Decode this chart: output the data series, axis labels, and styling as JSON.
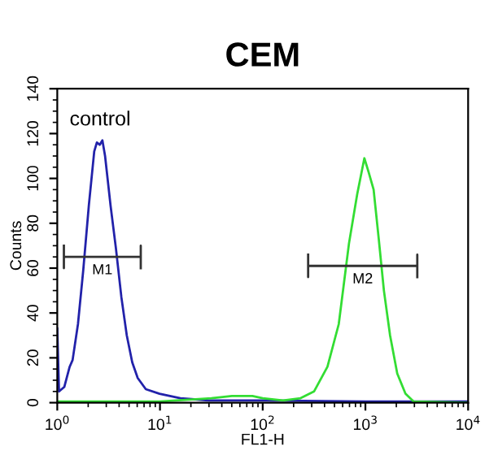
{
  "chart_data": {
    "type": "line",
    "title": "CEM",
    "xlabel": "FL1-H",
    "ylabel": "Counts",
    "log": "x",
    "xlim": [
      1,
      10000
    ],
    "xticks": [
      {
        "value": 1,
        "label": "10$^{0}$"
      },
      {
        "value": 10,
        "label": "10$^{1}$"
      },
      {
        "value": 100,
        "label": "10$^{2}$"
      },
      {
        "value": 1000,
        "label": "10$^{3}$"
      },
      {
        "value": 10000,
        "label": "10$^{4}$"
      }
    ],
    "ylim": [
      0,
      140
    ],
    "yticks": [
      0,
      20,
      40,
      60,
      80,
      100,
      120,
      140
    ],
    "grid": false,
    "legend": false,
    "marker": "none",
    "line_style": "solid",
    "series": [
      {
        "color": "#2222aa",
        "x": [
          1,
          1.04,
          1.17,
          1.32,
          1.41,
          1.59,
          1.79,
          2.03,
          2.29,
          2.43,
          2.59,
          2.75,
          2.92,
          3.3,
          3.72,
          4.21,
          4.75,
          5.37,
          6.07,
          7.28,
          9.9,
          15.8,
          30.2,
          100,
          1000,
          10000
        ],
        "values": [
          33,
          5,
          7,
          16,
          19,
          35,
          59,
          88,
          112,
          116,
          115,
          117,
          110,
          88,
          69,
          47,
          30,
          18,
          11,
          6,
          4,
          2,
          1,
          1,
          0.5,
          0.5
        ]
      },
      {
        "color": "#33dd33",
        "x": [
          1,
          10,
          31.6,
          50.1,
          79.4,
          100,
          158,
          234,
          316,
          427,
          550,
          692,
          832,
          977,
          1072,
          1202,
          1349,
          1514,
          1738,
          2042,
          2455,
          2951,
          10000
        ],
        "values": [
          0.5,
          0.5,
          2,
          3,
          3,
          2,
          1,
          2,
          5,
          16,
          35,
          71,
          93,
          109,
          103,
          95,
          73,
          50,
          30,
          13,
          4,
          0.5,
          0
        ]
      },
      {
        "color": "#333333",
        "x": [
          1.16,
          1.16,
          1.16,
          6.5,
          6.5,
          6.5
        ],
        "values": [
          70,
          60,
          65,
          65,
          70,
          60
        ]
      },
      {
        "color": "#333333",
        "x": [
          277,
          277,
          277,
          3200,
          3200,
          3200
        ],
        "values": [
          66,
          56,
          61,
          61,
          66,
          56
        ]
      }
    ],
    "annotations": [
      "control",
      "M1",
      "M2"
    ]
  }
}
